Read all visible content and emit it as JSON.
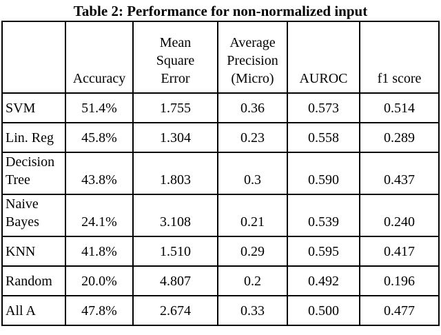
{
  "caption": "Table 2: Performance for non-normalized input",
  "table": {
    "column_headers": [
      "",
      "Accuracy",
      "Mean\nSquare\nError",
      "Average\nPrecision\n(Micro)",
      "AUROC",
      "f1 score"
    ],
    "rows": [
      {
        "label": "SVM",
        "values": [
          "51.4%",
          "1.755",
          "0.36",
          "0.573",
          "0.514"
        ]
      },
      {
        "label": "Lin. Reg",
        "values": [
          "45.8%",
          "1.304",
          "0.23",
          "0.558",
          "0.289"
        ]
      },
      {
        "label": "Decision\nTree",
        "values": [
          "43.8%",
          "1.803",
          "0.3",
          "0.590",
          "0.437"
        ]
      },
      {
        "label": "Naive\nBayes",
        "values": [
          "24.1%",
          "3.108",
          "0.21",
          "0.539",
          "0.240"
        ]
      },
      {
        "label": "KNN",
        "values": [
          "41.8%",
          "1.510",
          "0.29",
          "0.595",
          "0.417"
        ]
      },
      {
        "label": "Random",
        "values": [
          "20.0%",
          "4.807",
          "0.2",
          "0.492",
          "0.196"
        ]
      },
      {
        "label": "All A",
        "values": [
          "47.8%",
          "2.674",
          "0.33",
          "0.500",
          "0.477"
        ]
      }
    ]
  },
  "colors": {
    "background": "#ffffff",
    "text": "#000000",
    "border": "#000000"
  }
}
